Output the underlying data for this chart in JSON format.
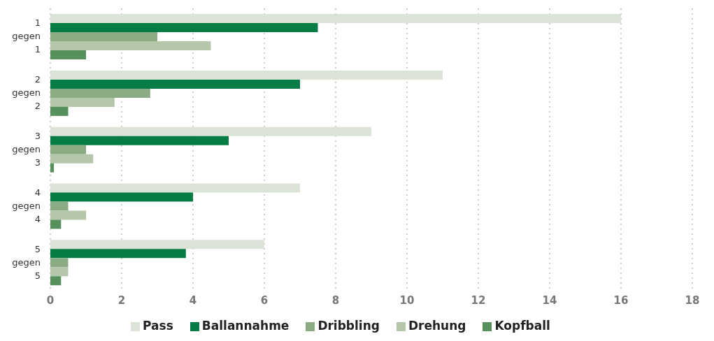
{
  "chart_data": {
    "type": "bar",
    "orientation": "horizontal",
    "categories": [
      "1 gegen 1",
      "2 gegen 2",
      "3 gegen 3",
      "4 gegen 4",
      "5 gegen 5"
    ],
    "series": [
      {
        "name": "Pass",
        "color": "#dae3d6",
        "values": [
          16,
          11,
          9,
          7,
          6
        ]
      },
      {
        "name": "Ballannahme",
        "color": "#067c45",
        "values": [
          7.5,
          7,
          5,
          4,
          3.8
        ]
      },
      {
        "name": "Dribbling",
        "color": "#8aab84",
        "values": [
          3,
          2.8,
          1,
          0.5,
          0.5
        ]
      },
      {
        "name": "Drehung",
        "color": "#b5c7ab",
        "values": [
          4.5,
          1.8,
          1.2,
          1,
          0.5
        ]
      },
      {
        "name": "Kopfball",
        "color": "#56915d",
        "values": [
          1,
          0.5,
          0.1,
          0.3,
          0.3
        ]
      }
    ],
    "xlim": [
      0,
      18
    ],
    "xticks": [
      0,
      2,
      4,
      6,
      8,
      10,
      12,
      14,
      16,
      18
    ],
    "grid": "x",
    "legend": "bottom"
  }
}
